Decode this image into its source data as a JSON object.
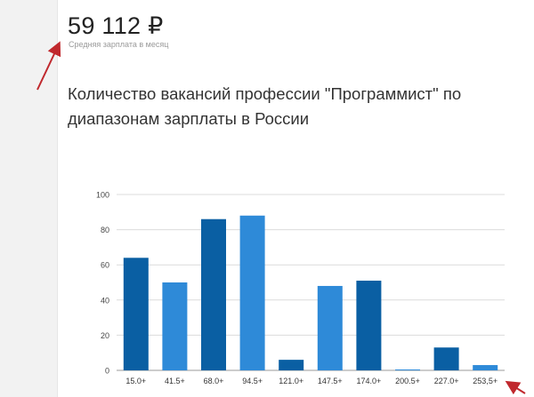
{
  "header": {
    "salary_value": "59 112 ₽",
    "salary_caption": "Средняя зарплата в месяц"
  },
  "chart_data": {
    "type": "bar",
    "title": "Количество вакансий профессии \"Программист\" по диапазонам зарплаты в России",
    "xlabel": "",
    "ylabel": "",
    "categories": [
      "15.0+",
      "41.5+",
      "68.0+",
      "94.5+",
      "121.0+",
      "147.5+",
      "174.0+",
      "200.5+",
      "227.0+",
      "253,5+"
    ],
    "values": [
      64,
      50,
      86,
      88,
      6,
      48,
      51,
      0.5,
      13,
      3
    ],
    "ylim": [
      0,
      100
    ],
    "yticks": [
      "0",
      "20",
      "40",
      "60",
      "80",
      "100"
    ],
    "grid": true,
    "bar_colors": [
      "#0a5fa3",
      "#2e8ad8"
    ]
  }
}
